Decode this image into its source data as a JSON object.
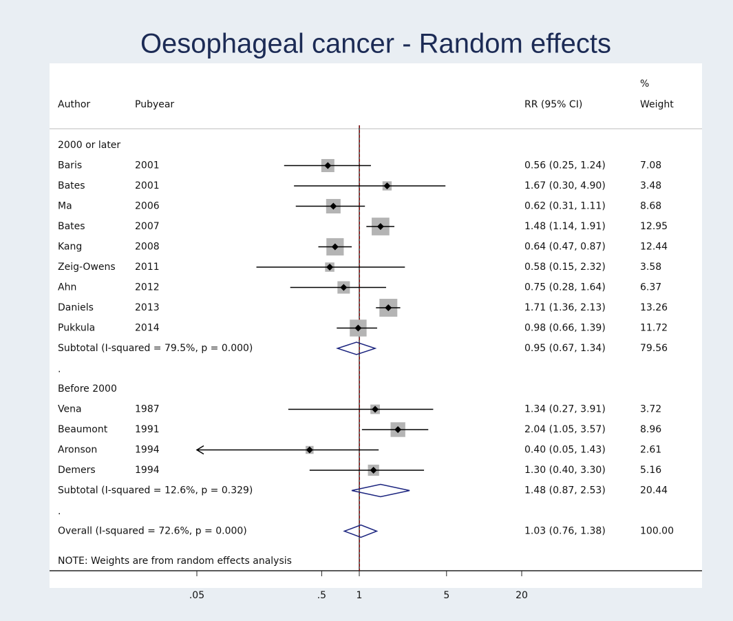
{
  "chart_data": {
    "type": "forest",
    "title": "Oesophageal cancer - Random effects",
    "columns": {
      "author": "Author",
      "pubyear": "Pubyear",
      "estimate": "RR (95% CI)",
      "weight_top": "%",
      "weight": "Weight"
    },
    "log_scale": true,
    "xlim": [
      0.05,
      20
    ],
    "xticks": [
      {
        "value": 0.05,
        "label": ".05"
      },
      {
        "value": 0.5,
        "label": ".5"
      },
      1,
      5,
      20
    ],
    "null_value": 1,
    "box_color": "#b4b4b4",
    "diamond_color": "#1a237e",
    "overall_line_color": "#8b0000",
    "groups": [
      {
        "label": "2000 or later",
        "studies": [
          {
            "author": "Baris",
            "pubyear": 2001,
            "rr": 0.56,
            "lo": 0.25,
            "hi": 1.24,
            "ci_label": "0.56 (0.25, 1.24)",
            "weight": 7.08
          },
          {
            "author": "Bates",
            "pubyear": 2001,
            "rr": 1.67,
            "lo": 0.3,
            "hi": 4.9,
            "ci_label": "1.67 (0.30, 4.90)",
            "weight": 3.48
          },
          {
            "author": "Ma",
            "pubyear": 2006,
            "rr": 0.62,
            "lo": 0.31,
            "hi": 1.11,
            "ci_label": "0.62 (0.31, 1.11)",
            "weight": 8.68
          },
          {
            "author": "Bates",
            "pubyear": 2007,
            "rr": 1.48,
            "lo": 1.14,
            "hi": 1.91,
            "ci_label": "1.48 (1.14, 1.91)",
            "weight": 12.95
          },
          {
            "author": "Kang",
            "pubyear": 2008,
            "rr": 0.64,
            "lo": 0.47,
            "hi": 0.87,
            "ci_label": "0.64 (0.47, 0.87)",
            "weight": 12.44
          },
          {
            "author": "Zeig-Owens",
            "pubyear": 2011,
            "rr": 0.58,
            "lo": 0.15,
            "hi": 2.32,
            "ci_label": "0.58 (0.15, 2.32)",
            "weight": 3.58
          },
          {
            "author": "Ahn",
            "pubyear": 2012,
            "rr": 0.75,
            "lo": 0.28,
            "hi": 1.64,
            "ci_label": "0.75 (0.28, 1.64)",
            "weight": 6.37
          },
          {
            "author": "Daniels",
            "pubyear": 2013,
            "rr": 1.71,
            "lo": 1.36,
            "hi": 2.13,
            "ci_label": "1.71 (1.36, 2.13)",
            "weight": 13.26
          },
          {
            "author": "Pukkula",
            "pubyear": 2014,
            "rr": 0.98,
            "lo": 0.66,
            "hi": 1.39,
            "ci_label": "0.98 (0.66, 1.39)",
            "weight": 11.72
          }
        ],
        "subtotal": {
          "label": "Subtotal  (I-squared = 79.5%, p = 0.000)",
          "rr": 0.95,
          "lo": 0.67,
          "hi": 1.34,
          "ci_label": "0.95 (0.67, 1.34)",
          "weight": 79.56
        },
        "gap_mark": "."
      },
      {
        "label": "Before 2000",
        "studies": [
          {
            "author": "Vena",
            "pubyear": 1987,
            "rr": 1.34,
            "lo": 0.27,
            "hi": 3.91,
            "ci_label": "1.34 (0.27, 3.91)",
            "weight": 3.72
          },
          {
            "author": "Beaumont",
            "pubyear": 1991,
            "rr": 2.04,
            "lo": 1.05,
            "hi": 3.57,
            "ci_label": "2.04 (1.05, 3.57)",
            "weight": 8.96
          },
          {
            "author": "Aronson",
            "pubyear": 1994,
            "rr": 0.4,
            "lo": 0.05,
            "hi": 1.43,
            "ci_label": "0.40 (0.05, 1.43)",
            "weight": 2.61
          },
          {
            "author": "Demers",
            "pubyear": 1994,
            "rr": 1.3,
            "lo": 0.4,
            "hi": 3.3,
            "ci_label": "1.30 (0.40, 3.30)",
            "weight": 5.16
          }
        ],
        "subtotal": {
          "label": "Subtotal  (I-squared = 12.6%, p = 0.329)",
          "rr": 1.48,
          "lo": 0.87,
          "hi": 2.53,
          "ci_label": "1.48 (0.87, 2.53)",
          "weight": 20.44
        },
        "gap_mark": "."
      }
    ],
    "overall": {
      "label": "Overall  (I-squared = 72.6%, p = 0.000)",
      "rr": 1.03,
      "lo": 0.76,
      "hi": 1.38,
      "ci_label": "1.03 (0.76, 1.38)",
      "weight": 100,
      "weight_label": "100.00"
    },
    "note": "NOTE: Weights are from random effects analysis"
  }
}
